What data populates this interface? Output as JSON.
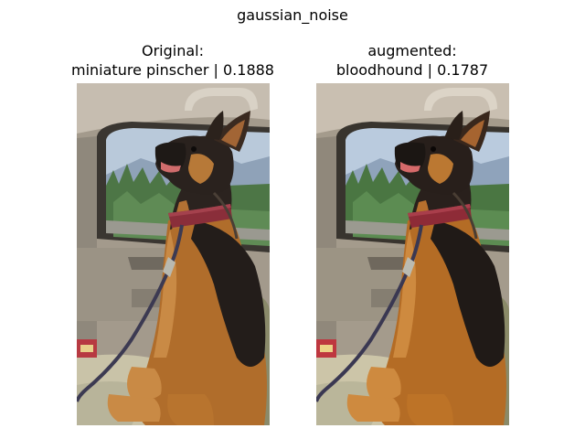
{
  "figure": {
    "suptitle": "gaussian_noise"
  },
  "panels": [
    {
      "title_line1": "Original:",
      "title_line2": "miniature pinscher | 0.1888",
      "image": "photo of a German Shepherd sitting in a car seat by a window, wearing a red collar and leash"
    },
    {
      "title_line1": "augmented:",
      "title_line2": "bloodhound | 0.1787",
      "image": "same photo with gaussian noise augmentation"
    }
  ],
  "colors": {
    "car_interior": "#a8a092",
    "window_sky": "#b8c8d8",
    "trees": "#4f7a48",
    "dog_black": "#2a2320",
    "dog_tan": "#b0702a",
    "collar": "#8a2e3a"
  }
}
